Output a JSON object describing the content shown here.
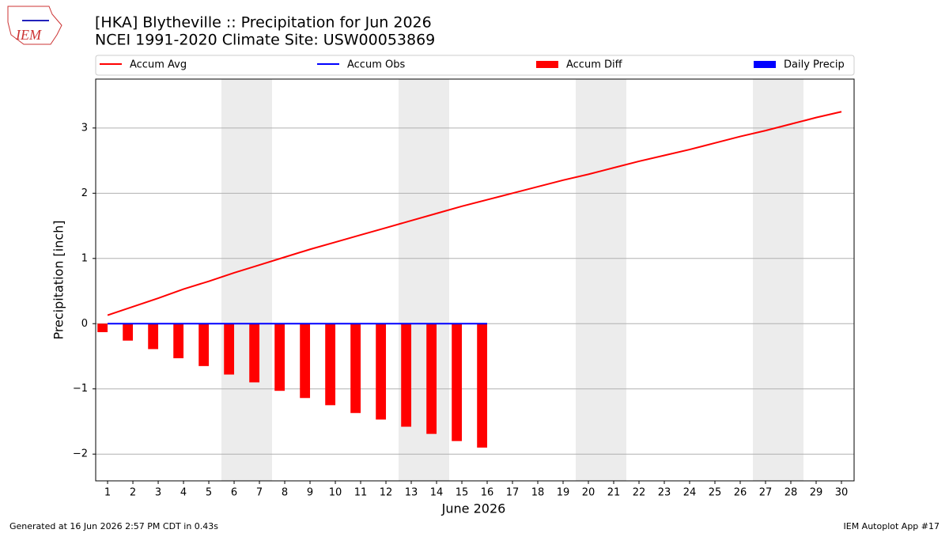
{
  "logo_text": "IEM",
  "footer_left": "Generated at 16 Jun 2026 2:57 PM CDT in 0.43s",
  "footer_right": "IEM Autoplot App #17",
  "chart_data": {
    "type": "bar",
    "title": "[HKA] Blytheville :: Precipitation for Jun 2026",
    "subtitle": "NCEI 1991-2020 Climate Site: USW00053869",
    "xlabel": "June 2026",
    "ylabel": "Precipitation [inch]",
    "x": [
      1,
      2,
      3,
      4,
      5,
      6,
      7,
      8,
      9,
      10,
      11,
      12,
      13,
      14,
      15,
      16,
      17,
      18,
      19,
      20,
      21,
      22,
      23,
      24,
      25,
      26,
      27,
      28,
      29,
      30
    ],
    "xlim": [
      0.53,
      30.5
    ],
    "xticks": [
      1,
      2,
      3,
      4,
      5,
      6,
      7,
      8,
      9,
      10,
      11,
      12,
      13,
      14,
      15,
      16,
      17,
      18,
      19,
      20,
      21,
      22,
      23,
      24,
      25,
      26,
      27,
      28,
      29,
      30
    ],
    "ylim": [
      -2.41,
      3.75
    ],
    "yticks": [
      {
        "value": -2,
        "label": "−2"
      },
      {
        "value": -1,
        "label": "−1"
      },
      0,
      1,
      2,
      3
    ],
    "grid": true,
    "series": [
      {
        "name": "Accum Avg",
        "kind": "line",
        "color": "#ff0000",
        "values": [
          0.13,
          0.26,
          0.39,
          0.53,
          0.65,
          0.78,
          0.9,
          1.02,
          1.14,
          1.25,
          1.36,
          1.47,
          1.58,
          1.69,
          1.8,
          1.9,
          2.0,
          2.1,
          2.2,
          2.29,
          2.39,
          2.49,
          2.58,
          2.67,
          2.77,
          2.87,
          2.96,
          3.06,
          3.16,
          3.25
        ]
      },
      {
        "name": "Accum Obs",
        "kind": "line",
        "color": "#0000ff",
        "values": [
          0,
          0,
          0,
          0,
          0,
          0,
          0,
          0,
          0,
          0,
          0,
          0,
          0,
          0,
          0,
          0,
          null,
          null,
          null,
          null,
          null,
          null,
          null,
          null,
          null,
          null,
          null,
          null,
          null,
          null
        ]
      },
      {
        "name": "Accum Diff",
        "kind": "bar",
        "color": "#ff0000",
        "values": [
          -0.13,
          -0.26,
          -0.39,
          -0.53,
          -0.65,
          -0.78,
          -0.9,
          -1.03,
          -1.14,
          -1.25,
          -1.37,
          -1.47,
          -1.58,
          -1.69,
          -1.8,
          -1.9,
          null,
          null,
          null,
          null,
          null,
          null,
          null,
          null,
          null,
          null,
          null,
          null,
          null,
          null
        ]
      },
      {
        "name": "Daily Precip",
        "kind": "bar",
        "color": "#0000ff",
        "values": [
          0,
          0,
          0,
          0,
          0,
          0,
          0,
          0,
          0,
          0,
          0,
          0,
          0,
          0,
          0,
          0,
          null,
          null,
          null,
          null,
          null,
          null,
          null,
          null,
          null,
          null,
          null,
          null,
          null,
          null
        ]
      }
    ]
  }
}
